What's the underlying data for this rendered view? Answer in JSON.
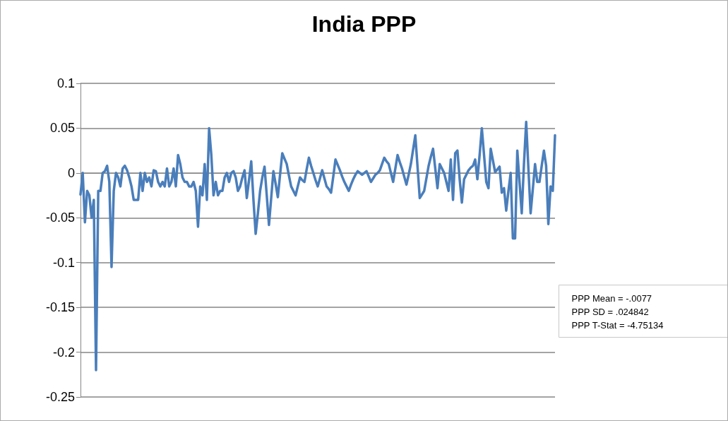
{
  "chart_data": {
    "type": "line",
    "title": "India PPP",
    "categories": [
      null,
      null,
      null,
      null,
      null,
      null,
      null,
      null,
      null,
      null,
      null,
      null,
      null,
      null,
      null,
      null,
      null,
      null,
      null,
      null,
      null,
      null,
      null,
      null,
      null,
      null,
      null,
      null,
      null,
      null,
      null,
      null,
      null,
      null,
      null,
      null,
      null,
      null,
      null,
      null,
      null,
      null,
      null,
      null,
      null,
      null,
      null,
      null,
      null,
      null,
      null,
      null,
      null,
      null,
      null,
      null,
      null,
      null,
      null,
      null,
      null,
      null,
      null,
      null,
      null,
      null,
      null,
      null,
      null,
      null,
      null,
      null,
      null,
      null,
      null,
      null,
      null,
      null,
      null,
      null,
      null,
      null,
      null,
      null,
      null,
      null,
      null,
      null,
      null,
      null,
      null,
      null,
      null,
      null,
      null,
      null,
      null,
      null,
      null,
      null,
      null,
      null,
      null,
      null,
      null,
      null,
      null,
      null,
      null,
      null,
      null,
      null,
      null,
      null,
      null,
      null,
      null,
      null,
      null,
      null,
      null,
      null,
      null,
      null,
      null,
      null,
      null,
      null,
      null,
      null,
      null,
      null,
      null,
      null,
      null,
      null,
      null,
      null,
      null,
      null,
      null,
      null,
      null,
      null,
      null,
      null,
      null,
      null,
      null,
      null,
      null,
      null,
      null,
      null,
      null,
      null,
      null,
      null,
      null,
      null,
      null,
      null,
      null,
      null,
      null,
      null,
      null,
      null,
      null,
      null,
      null,
      null,
      null,
      null,
      null,
      null,
      null,
      null,
      null,
      null,
      null,
      null,
      null,
      null,
      null,
      null,
      null,
      null,
      null,
      null,
      null,
      null,
      null,
      null,
      null,
      null,
      null,
      null,
      null,
      null,
      null,
      null,
      null,
      null,
      null,
      null,
      null,
      null,
      null,
      null,
      null,
      null,
      null,
      null,
      null
    ],
    "series": [
      {
        "color": "#4a7ebb",
        "values": [
          -0.024,
          0,
          -0.055,
          -0.02,
          -0.025,
          -0.05,
          -0.03,
          -0.22,
          -0.02,
          -0.02,
          0,
          0.002,
          0.008,
          -0.01,
          -0.105,
          -0.02,
          0,
          -0.005,
          -0.015,
          0.005,
          0.008,
          0.003,
          -0.005,
          -0.015,
          -0.03,
          -0.03,
          -0.03,
          0,
          -0.02,
          0,
          -0.01,
          -0.005,
          -0.015,
          0.003,
          0.002,
          -0.01,
          -0.015,
          -0.01,
          -0.015,
          0.005,
          -0.015,
          -0.01,
          0.005,
          -0.015,
          0.02,
          0.01,
          -0.005,
          -0.01,
          -0.01,
          -0.015,
          -0.015,
          -0.01,
          -0.02,
          -0.06,
          -0.015,
          -0.025,
          0.01,
          -0.03,
          0.05,
          0.02,
          -0.025,
          -0.01,
          -0.025,
          -0.02,
          -0.02,
          -0.005,
          0,
          -0.01,
          0,
          0.002,
          -0.005,
          -0.02,
          -0.015,
          -0.005,
          0.003,
          -0.028,
          -0.008,
          0.013,
          -0.03,
          -0.068,
          -0.045,
          -0.02,
          -0.005,
          0.007,
          -0.025,
          -0.058,
          -0.028,
          0.002,
          -0.012,
          -0.027,
          -0.002,
          0.022,
          0.016,
          0.01,
          -0.003,
          -0.015,
          -0.02,
          -0.025,
          -0.015,
          -0.005,
          -0.008,
          -0.01,
          0.004,
          0.017,
          0.008,
          0,
          -0.008,
          -0.015,
          -0.006,
          0.003,
          -0.006,
          -0.015,
          -0.018,
          -0.022,
          -0.004,
          0.015,
          0.009,
          0.003,
          -0.004,
          -0.01,
          -0.015,
          -0.02,
          -0.013,
          -0.007,
          -0.002,
          0.002,
          0,
          -0.002,
          0,
          0.002,
          -0.004,
          -0.01,
          -0.006,
          -0.002,
          0,
          0.003,
          0.01,
          0.017,
          0.013,
          0.01,
          0,
          -0.01,
          0.005,
          0.02,
          0.012,
          0.005,
          -0.004,
          -0.013,
          -0.002,
          0.01,
          0.026,
          0.042,
          0.007,
          -0.028,
          -0.024,
          -0.02,
          -0.006,
          0.008,
          0.018,
          0.027,
          0.005,
          -0.017,
          0.01,
          0.005,
          0,
          -0.01,
          -0.02,
          0.015,
          -0.03,
          0.022,
          0.025,
          -0.007,
          -0.033,
          -0.007,
          -0.002,
          0.003,
          0.006,
          0.008,
          0.015,
          -0.007,
          0.02,
          0.05,
          0.02,
          -0.01,
          -0.017,
          0.027,
          0.014,
          0.001,
          0.004,
          0.007,
          -0.022,
          -0.017,
          -0.042,
          -0.02,
          0,
          -0.073,
          -0.073,
          0.025,
          -0.01,
          -0.045,
          0.01,
          0.057,
          0.005,
          -0.045,
          -0.018,
          0.01,
          -0.01,
          -0.01,
          0.008,
          0.025,
          0.008,
          -0.057,
          -0.015,
          -0.02,
          0.042
        ]
      }
    ],
    "ylim": [
      -0.25,
      0.1
    ],
    "yticks": [
      -0.25,
      -0.2,
      -0.15,
      -0.1,
      -0.05,
      0,
      0.05,
      0.1
    ],
    "grid": "y",
    "line_style": "solid",
    "tick_labels": "y",
    "annotations": [
      "PPP Mean = -.0077",
      "PPP SD = .024842",
      "PPP T-Stat = -4.75134"
    ]
  }
}
